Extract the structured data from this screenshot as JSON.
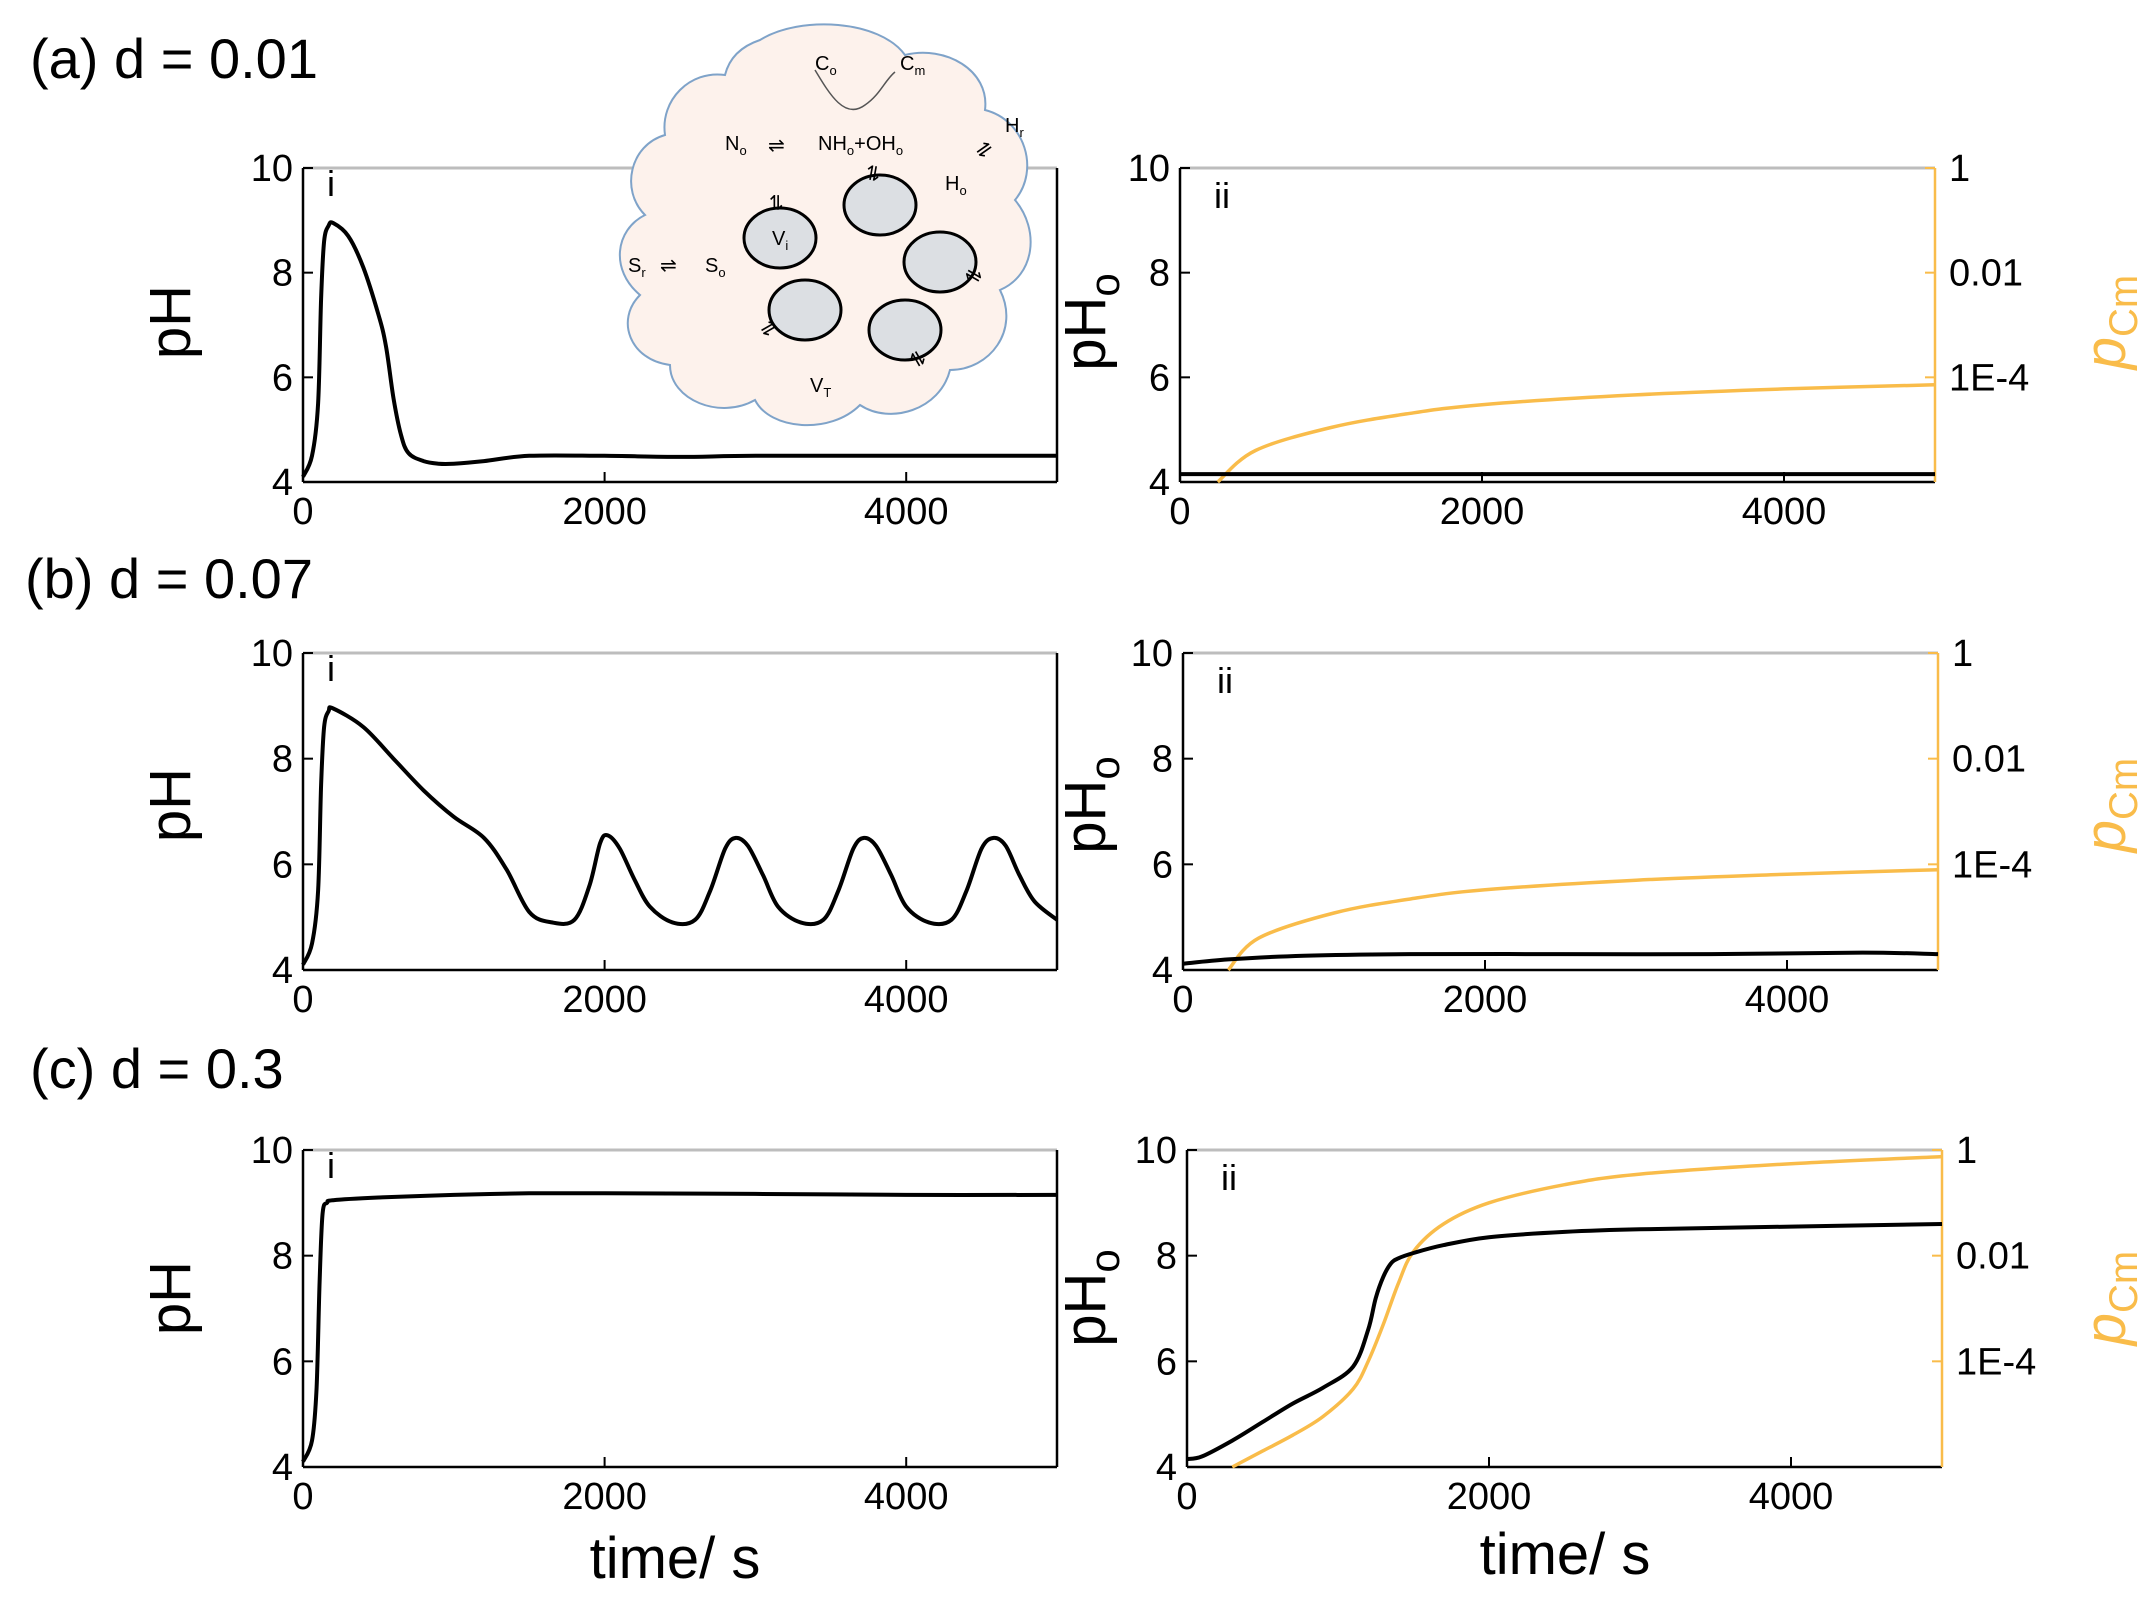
{
  "colors": {
    "ph": "#000000",
    "pcm": "#f9bc4a",
    "cell_fill": "#fdf2ec",
    "cell_edge": "#7fa3c9",
    "vesicle": "#dcdfe3"
  },
  "rows": [
    {
      "label": "(a)  d = 0.01"
    },
    {
      "label": "(b)  d = 0.07"
    },
    {
      "label": "(c)  d = 0.3"
    }
  ],
  "axes": {
    "x_ticks": [
      "0",
      "2000",
      "4000"
    ],
    "ph_ticks": [
      "4",
      "6",
      "8",
      "10"
    ],
    "pcm_ticks": [
      "1E-4",
      "0.01",
      "1"
    ],
    "xlabel": "time/ s",
    "left_ylabel": "pH",
    "right_ylabel": "pH",
    "right_ylabel_sub": "o",
    "pcm_ylabel": "p",
    "pcm_ylabel_sub": "Cm",
    "panel_i": "i",
    "panel_ii": "ii"
  },
  "diagram": {
    "Co": "C",
    "Co_sub": "o",
    "Cm": "C",
    "Cm_sub": "m",
    "Hr": "H",
    "Hr_sub": "r",
    "No": "N",
    "No_sub": "o",
    "NHo": "NH",
    "NHo_sub": "o",
    "plus": "+",
    "OHo": "OH",
    "OHo_sub": "o",
    "Ho": "H",
    "Ho_sub": "o",
    "Vi": "V",
    "Vi_sub": "i",
    "Sr": "S",
    "Sr_sub": "r",
    "So": "S",
    "So_sub": "o",
    "VT": "V",
    "VT_sub": "T"
  },
  "chart_data": [
    {
      "type": "line",
      "row": "a",
      "panel": "i",
      "xlabel": "",
      "ylabel": "pH",
      "xlim": [
        0,
        5000
      ],
      "ylim": [
        4,
        10
      ],
      "series": [
        {
          "name": "pH",
          "color": "#000000",
          "x": [
            0,
            60,
            100,
            120,
            140,
            170,
            200,
            300,
            400,
            500,
            550,
            600,
            650,
            700,
            800,
            900,
            1000,
            1200,
            1500,
            2000,
            2500,
            3000,
            4000,
            5000
          ],
          "y": [
            4.1,
            4.5,
            5.5,
            7.5,
            8.6,
            8.9,
            8.95,
            8.7,
            8.1,
            7.2,
            6.6,
            5.6,
            4.9,
            4.55,
            4.4,
            4.35,
            4.35,
            4.4,
            4.5,
            4.5,
            4.48,
            4.5,
            4.5,
            4.5
          ]
        }
      ]
    },
    {
      "type": "line",
      "row": "a",
      "panel": "ii",
      "xlabel": "",
      "ylabel": "pHo",
      "y2label": "pCm",
      "xlim": [
        0,
        5000
      ],
      "ylim": [
        4,
        10
      ],
      "y2lim": [
        1e-06,
        1
      ],
      "y2scale": "log",
      "series": [
        {
          "name": "pHo",
          "axis": "left",
          "color": "#000000",
          "x": [
            0,
            5000
          ],
          "y": [
            4.15,
            4.15
          ]
        },
        {
          "name": "pCm",
          "axis": "right",
          "color": "#f9bc4a",
          "x": [
            250,
            500,
            1000,
            1500,
            2000,
            3000,
            4000,
            5000
          ],
          "y": [
            1e-06,
            4e-06,
            1.1e-05,
            2e-05,
            3e-05,
            4.6e-05,
            6e-05,
            7.2e-05
          ]
        }
      ]
    },
    {
      "type": "line",
      "row": "b",
      "panel": "i",
      "xlabel": "",
      "ylabel": "pH",
      "xlim": [
        0,
        5000
      ],
      "ylim": [
        4,
        10
      ],
      "series": [
        {
          "name": "pH",
          "color": "#000000",
          "x": [
            0,
            60,
            100,
            120,
            140,
            170,
            200,
            400,
            600,
            800,
            1000,
            1200,
            1350,
            1500,
            1650,
            1800,
            1900,
            1970,
            2020,
            2100,
            2200,
            2300,
            2450,
            2600,
            2700,
            2800,
            2870,
            2950,
            3050,
            3150,
            3300,
            3450,
            3550,
            3650,
            3720,
            3800,
            3900,
            4000,
            4150,
            4300,
            4400,
            4500,
            4580,
            4660,
            4750,
            4850,
            5000
          ],
          "y": [
            4.1,
            4.5,
            5.5,
            7.5,
            8.6,
            8.9,
            8.95,
            8.6,
            8.0,
            7.4,
            6.9,
            6.5,
            5.9,
            5.1,
            4.9,
            4.95,
            5.6,
            6.4,
            6.55,
            6.3,
            5.7,
            5.2,
            4.9,
            4.95,
            5.5,
            6.3,
            6.5,
            6.35,
            5.8,
            5.2,
            4.9,
            4.95,
            5.5,
            6.3,
            6.5,
            6.35,
            5.8,
            5.2,
            4.9,
            4.95,
            5.5,
            6.3,
            6.5,
            6.35,
            5.8,
            5.3,
            4.95
          ]
        }
      ]
    },
    {
      "type": "line",
      "row": "b",
      "panel": "ii",
      "xlabel": "",
      "ylabel": "pHo",
      "y2label": "pCm",
      "xlim": [
        0,
        5000
      ],
      "ylim": [
        4,
        10
      ],
      "y2lim": [
        1e-06,
        1
      ],
      "y2scale": "log",
      "series": [
        {
          "name": "pHo",
          "axis": "left",
          "color": "#000000",
          "x": [
            0,
            300,
            800,
            1500,
            2500,
            3500,
            4500,
            5000
          ],
          "y": [
            4.12,
            4.2,
            4.27,
            4.3,
            4.3,
            4.3,
            4.33,
            4.3
          ]
        },
        {
          "name": "pCm",
          "axis": "right",
          "color": "#f9bc4a",
          "x": [
            300,
            500,
            1000,
            1500,
            2000,
            3000,
            4000,
            5000
          ],
          "y": [
            1e-06,
            4e-06,
            1.2e-05,
            2.2e-05,
            3.3e-05,
            5e-05,
            6.5e-05,
            7.9e-05
          ]
        }
      ]
    },
    {
      "type": "line",
      "row": "c",
      "panel": "i",
      "xlabel": "time/ s",
      "ylabel": "pH",
      "xlim": [
        0,
        5000
      ],
      "ylim": [
        4,
        10
      ],
      "series": [
        {
          "name": "pH",
          "color": "#000000",
          "x": [
            0,
            60,
            90,
            110,
            130,
            160,
            200,
            500,
            1000,
            1500,
            2000,
            3000,
            4000,
            5000
          ],
          "y": [
            4.1,
            4.5,
            5.5,
            7.5,
            8.8,
            9.0,
            9.05,
            9.1,
            9.15,
            9.18,
            9.18,
            9.17,
            9.15,
            9.15
          ]
        }
      ]
    },
    {
      "type": "line",
      "row": "c",
      "panel": "ii",
      "xlabel": "time/ s",
      "ylabel": "pHo",
      "y2label": "pCm",
      "xlim": [
        0,
        5000
      ],
      "ylim": [
        4,
        10
      ],
      "y2lim": [
        1e-06,
        1
      ],
      "y2scale": "log",
      "series": [
        {
          "name": "pHo",
          "axis": "left",
          "color": "#000000",
          "x": [
            0,
            100,
            300,
            500,
            700,
            900,
            1100,
            1200,
            1250,
            1300,
            1350,
            1400,
            1500,
            1700,
            2000,
            2500,
            3000,
            4000,
            5000
          ],
          "y": [
            4.15,
            4.2,
            4.5,
            4.85,
            5.2,
            5.5,
            5.9,
            6.6,
            7.2,
            7.6,
            7.85,
            7.95,
            8.05,
            8.2,
            8.35,
            8.45,
            8.5,
            8.55,
            8.6
          ]
        },
        {
          "name": "pCm",
          "axis": "right",
          "color": "#f9bc4a",
          "x": [
            300,
            500,
            700,
            900,
            1100,
            1200,
            1300,
            1400,
            1500,
            1700,
            2000,
            2500,
            3000,
            4000,
            5000
          ],
          "y": [
            1e-06,
            2e-06,
            4e-06,
            9e-06,
            3e-05,
            0.0001,
            0.0005,
            0.003,
            0.012,
            0.04,
            0.1,
            0.22,
            0.35,
            0.55,
            0.75
          ]
        }
      ]
    }
  ]
}
